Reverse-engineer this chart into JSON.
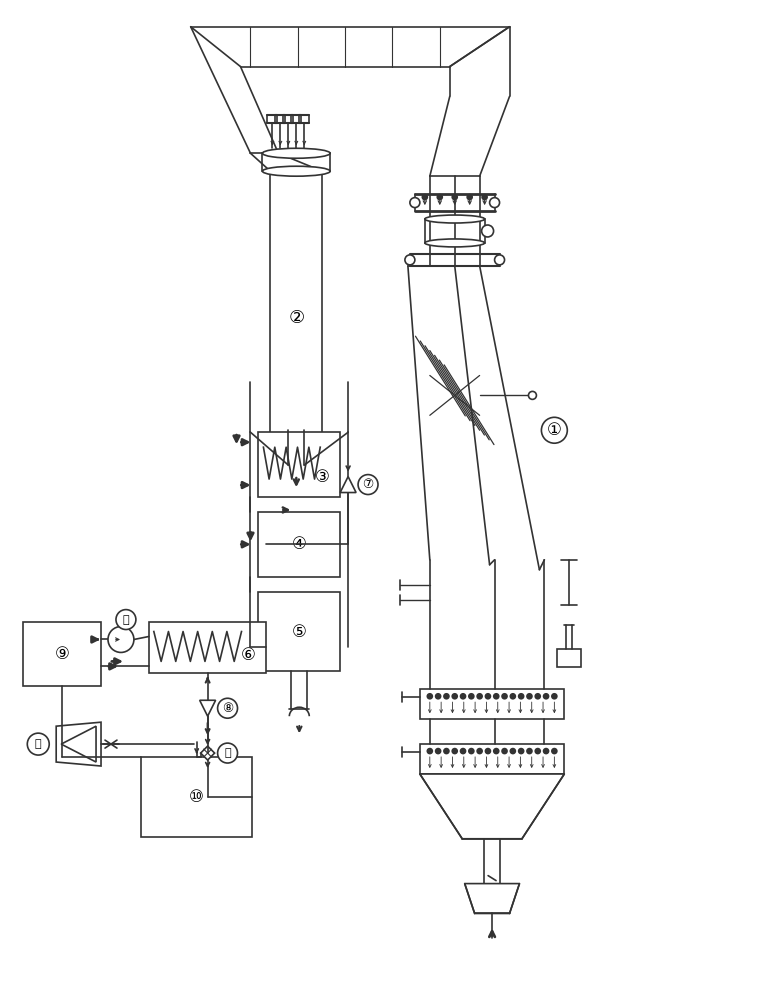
{
  "bg_color": "#ffffff",
  "line_color": "#333333",
  "lw": 1.2
}
